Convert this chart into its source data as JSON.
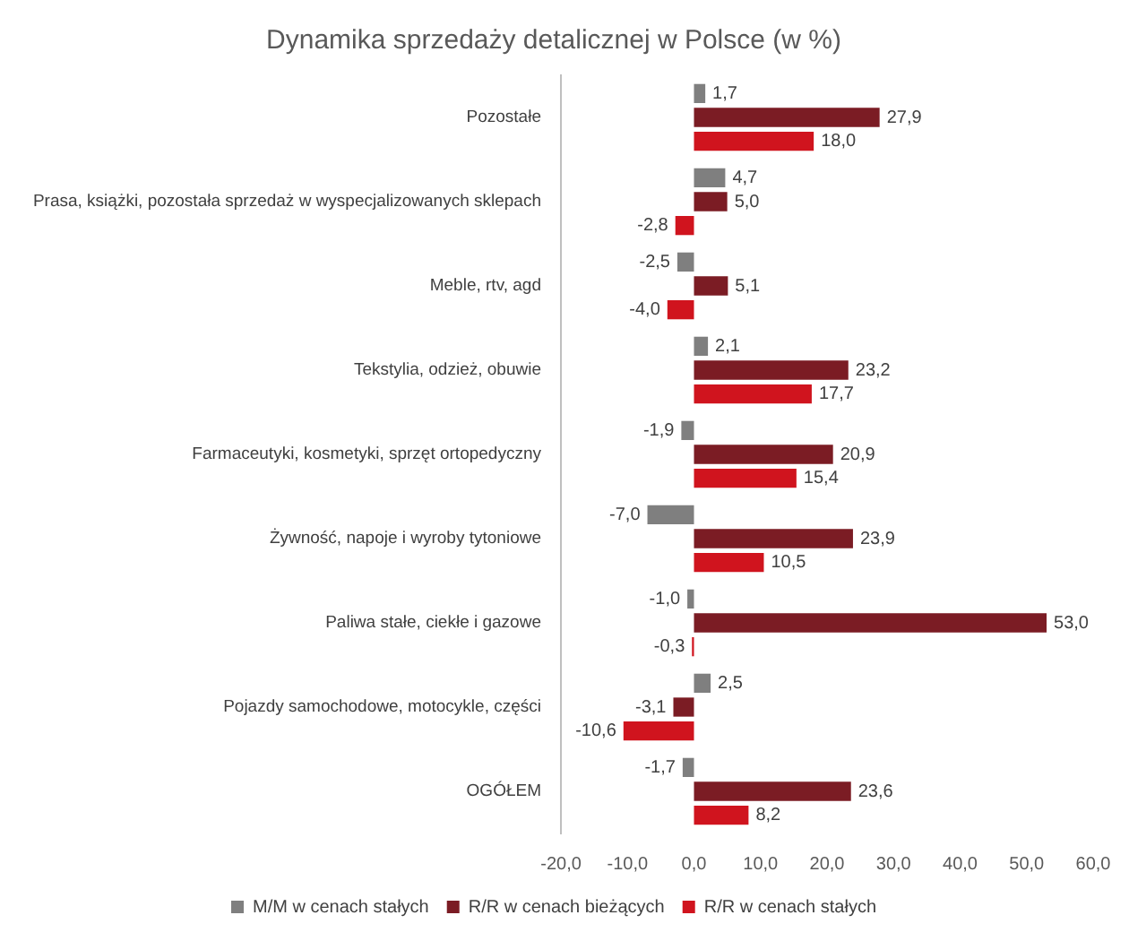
{
  "chart_data": {
    "type": "bar",
    "orientation": "horizontal",
    "title": "Dynamika sprzedaży detalicznej w Polsce (w %)",
    "categories": [
      "Pozostałe",
      "Prasa, książki, pozostała sprzedaż w wyspecjalizowanych sklepach",
      "Meble, rtv, agd",
      "Tekstylia, odzież, obuwie",
      "Farmaceutyki, kosmetyki, sprzęt ortopedyczny",
      "Żywność, napoje i wyroby tytoniowe",
      "Paliwa stałe, ciekłe i gazowe",
      "Pojazdy samochodowe, motocykle, części",
      "OGÓŁEM"
    ],
    "series": [
      {
        "name": "M/M w cenach stałych",
        "color": "#7f7f7f",
        "values": [
          1.7,
          4.7,
          -2.5,
          2.1,
          -1.9,
          -7.0,
          -1.0,
          2.5,
          -1.7
        ],
        "value_labels": [
          "1,7",
          "4,7",
          "-2,5",
          "2,1",
          "-1,9",
          "-7,0",
          "-1,0",
          "2,5",
          "-1,7"
        ]
      },
      {
        "name": "R/R w cenach bieżących",
        "color": "#7b1c24",
        "values": [
          27.9,
          5.0,
          5.1,
          23.2,
          20.9,
          23.9,
          53.0,
          -3.1,
          23.6
        ],
        "value_labels": [
          "27,9",
          "5,0",
          "5,1",
          "23,2",
          "20,9",
          "23,9",
          "53,0",
          "-3,1",
          "23,6"
        ]
      },
      {
        "name": "R/R w cenach stałych",
        "color": "#d0141e",
        "values": [
          18.0,
          -2.8,
          -4.0,
          17.7,
          15.4,
          10.5,
          -0.3,
          -10.6,
          8.2
        ],
        "value_labels": [
          "18,0",
          "-2,8",
          "-4,0",
          "17,7",
          "15,4",
          "10,5",
          "-0,3",
          "-10,6",
          "8,2"
        ]
      }
    ],
    "xlim": [
      -20,
      60
    ],
    "xticks": [
      {
        "value": -20,
        "label": "-20,0"
      },
      {
        "value": -10,
        "label": "-10,0"
      },
      {
        "value": 0,
        "label": "0,0"
      },
      {
        "value": 10,
        "label": "10,0"
      },
      {
        "value": 20,
        "label": "20,0"
      },
      {
        "value": 30,
        "label": "30,0"
      },
      {
        "value": 40,
        "label": "40,0"
      },
      {
        "value": 50,
        "label": "50,0"
      },
      {
        "value": 60,
        "label": "60,0"
      }
    ],
    "grid": false,
    "legend": "bottom"
  }
}
